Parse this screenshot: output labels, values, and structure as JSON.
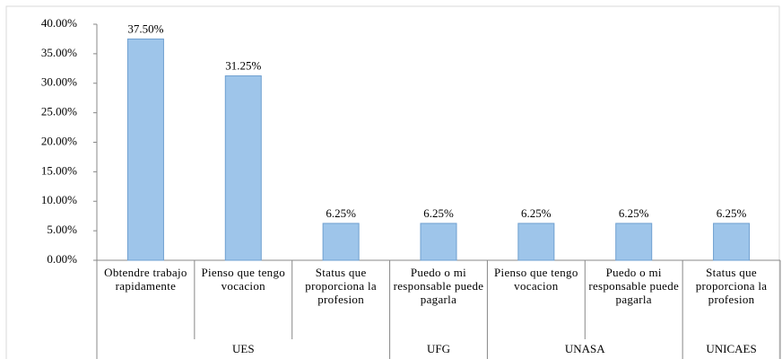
{
  "chart_data": {
    "type": "bar",
    "color": "#9ec5ea",
    "ylim": [
      0,
      40
    ],
    "yticks": [
      {
        "value": 0,
        "label": "0.00%"
      },
      {
        "value": 5,
        "label": "5.00%"
      },
      {
        "value": 10,
        "label": "10.00%"
      },
      {
        "value": 15,
        "label": "15.00%"
      },
      {
        "value": 20,
        "label": "20.00%"
      },
      {
        "value": 25,
        "label": "25.00%"
      },
      {
        "value": 30,
        "label": "30.00%"
      },
      {
        "value": 35,
        "label": "35.00%"
      },
      {
        "value": 40,
        "label": "40.00%"
      }
    ],
    "grid": false,
    "groups": [
      {
        "name": "UES",
        "categories": [
          "Obtendre trabajo rapidamente",
          "Pienso que tengo vocacion",
          "Status que proporciona la profesion"
        ],
        "values": [
          37.5,
          31.25,
          6.25
        ],
        "value_labels": [
          "37.50%",
          "31.25%",
          "6.25%"
        ]
      },
      {
        "name": "UFG",
        "categories": [
          "Puedo o mi responsable puede pagarla"
        ],
        "values": [
          6.25
        ],
        "value_labels": [
          "6.25%"
        ]
      },
      {
        "name": "UNASA",
        "categories": [
          "Pienso que tengo vocacion",
          "Puedo o mi responsable puede pagarla"
        ],
        "values": [
          6.25,
          6.25
        ],
        "value_labels": [
          "6.25%",
          "6.25%"
        ]
      },
      {
        "name": "UNICAES",
        "categories": [
          "Status que proporciona la profesion"
        ],
        "values": [
          6.25
        ],
        "value_labels": [
          "6.25%"
        ]
      }
    ]
  }
}
